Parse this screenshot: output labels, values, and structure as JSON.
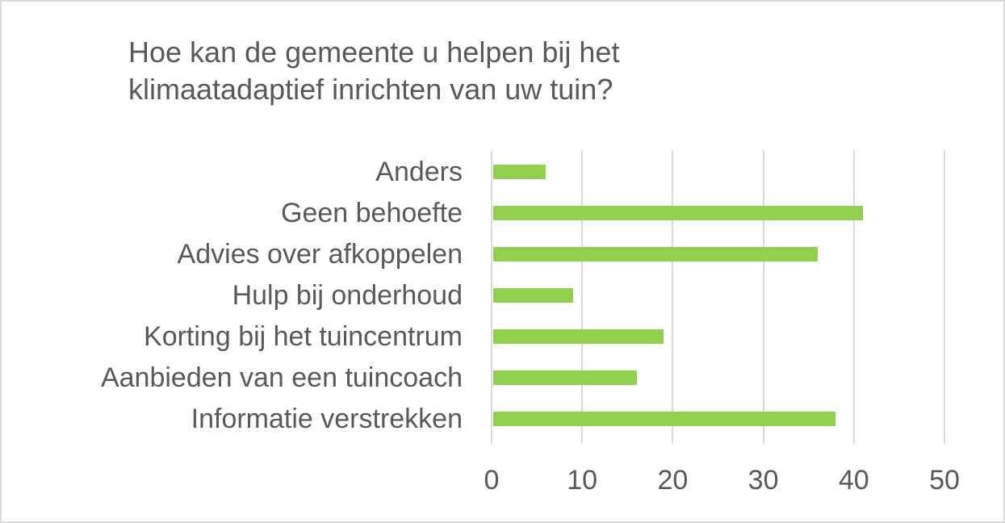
{
  "chart_data": {
    "type": "bar",
    "orientation": "horizontal",
    "title": "Hoe kan de gemeente u helpen bij het\nklimaatadaptief inrichten van uw tuin?",
    "categories": [
      "Anders",
      "Geen behoefte",
      "Advies over afkoppelen",
      "Hulp bij onderhoud",
      "Korting bij het tuincentrum",
      "Aanbieden van een tuincoach",
      "Informatie verstrekken"
    ],
    "values": [
      6,
      41,
      36,
      9,
      19,
      16,
      38
    ],
    "xlabel": "",
    "ylabel": "",
    "xlim": [
      0,
      50
    ],
    "xticks": [
      "0",
      "10",
      "20",
      "30",
      "40",
      "50"
    ],
    "grid": true,
    "legend": null,
    "bar_color": "#92d050"
  }
}
